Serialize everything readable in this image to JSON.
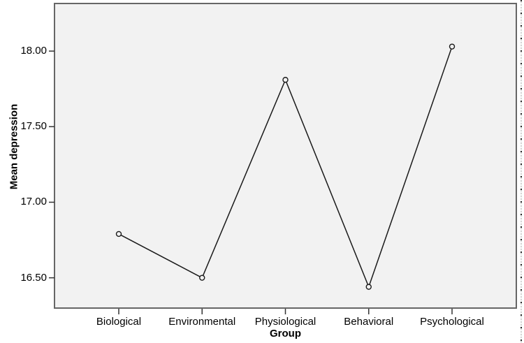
{
  "figure": {
    "background_color": "#ffffff",
    "plot_background_color": "#f2f2f2",
    "frame_color": "#666666",
    "line_color": "#1a1a1a",
    "tick_color": "#333333",
    "text_color": "#000000",
    "marker_style": "open-circle"
  },
  "chart_data": {
    "type": "line",
    "title": "",
    "xlabel": "Group",
    "ylabel": "Mean depression",
    "categories": [
      "Biological",
      "Environmental",
      "Physiological",
      "Behavioral",
      "Psychological"
    ],
    "values": [
      16.79,
      16.5,
      17.81,
      16.44,
      18.03
    ],
    "series": [
      {
        "name": "Mean depression",
        "values": [
          16.79,
          16.5,
          17.81,
          16.44,
          18.03
        ]
      }
    ],
    "yticks": [
      16.5,
      17.0,
      17.5,
      18.0
    ],
    "ytick_labels": [
      "16.50",
      "17.00",
      "17.50",
      "18.00"
    ],
    "ylim": [
      16.295,
      18.315
    ],
    "grid": false,
    "legend_position": "none"
  }
}
